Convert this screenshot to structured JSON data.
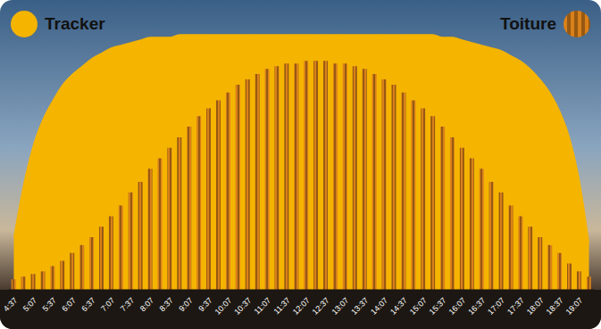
{
  "chart_data": {
    "type": "area_bar",
    "categories": [
      "4:37",
      null,
      "5:07",
      null,
      "5:37",
      null,
      "6:07",
      null,
      "6:37",
      null,
      "7:07",
      null,
      "7:37",
      null,
      "8:07",
      null,
      "8:37",
      null,
      "9:07",
      null,
      "9:37",
      null,
      "10:07",
      null,
      "10:37",
      null,
      "11:07",
      null,
      "11:37",
      null,
      "12:07",
      null,
      "12:37",
      null,
      "13:07",
      null,
      "13:37",
      null,
      "14:07",
      null,
      "14:37",
      null,
      "15:07",
      null,
      "15:37",
      null,
      "16:07",
      null,
      "16:37",
      null,
      "17:07",
      null,
      "17:37",
      null,
      "18:07",
      null,
      "18:37",
      null,
      "19:07",
      null
    ],
    "series": [
      {
        "name": "Tracker",
        "type": "area",
        "color": "#f5b400",
        "values": [
          20,
          40,
          55,
          65,
          72,
          78,
          82,
          85,
          88,
          90,
          92,
          93,
          94,
          95,
          96,
          96,
          96,
          97,
          97,
          97,
          97,
          97,
          97,
          97,
          97,
          97,
          97,
          97,
          97,
          97,
          97,
          97,
          97,
          97,
          97,
          97,
          97,
          97,
          97,
          97,
          97,
          97,
          97,
          97,
          96,
          96,
          95,
          94,
          93,
          92,
          91,
          89,
          87,
          84,
          80,
          75,
          68,
          58,
          42,
          18
        ]
      },
      {
        "name": "Toiture",
        "type": "bar",
        "color": "#d9801a",
        "values": [
          4,
          5,
          6,
          7,
          9,
          11,
          14,
          17,
          20,
          24,
          28,
          32,
          37,
          41,
          46,
          50,
          54,
          58,
          62,
          66,
          69,
          72,
          75,
          78,
          80,
          82,
          84,
          85,
          86,
          86,
          87,
          87,
          87,
          86,
          86,
          85,
          84,
          82,
          80,
          78,
          75,
          72,
          69,
          66,
          62,
          58,
          54,
          50,
          46,
          41,
          37,
          32,
          28,
          24,
          20,
          17,
          14,
          10,
          7,
          5
        ]
      }
    ],
    "ylim": [
      0,
      100
    ],
    "tick_labels": "x",
    "legend": "top",
    "grid": false
  }
}
